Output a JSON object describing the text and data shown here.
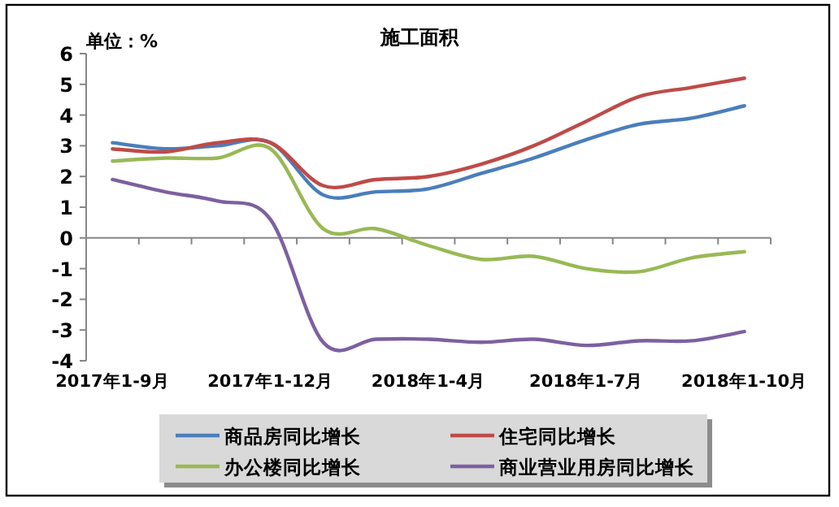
{
  "chart_data": {
    "type": "line",
    "title": "施工面积",
    "annotations": [
      "单位：%"
    ],
    "categories": [
      "2017年1-9月",
      null,
      null,
      "2017年1-12月",
      null,
      null,
      "2018年1-4月",
      null,
      null,
      "2018年1-7月",
      null,
      null,
      "2018年1-10月"
    ],
    "series": [
      {
        "name": "商品房同比增长",
        "color": "#4a7ebb",
        "values": [
          3.1,
          2.9,
          3.0,
          3.1,
          1.4,
          1.5,
          1.6,
          2.1,
          2.6,
          3.2,
          3.7,
          3.9,
          4.3
        ]
      },
      {
        "name": "住宅同比增长",
        "color": "#be4b48",
        "values": [
          2.9,
          2.8,
          3.1,
          3.1,
          1.7,
          1.9,
          2.0,
          2.4,
          3.0,
          3.8,
          4.6,
          4.9,
          5.2
        ]
      },
      {
        "name": "办公楼同比增长",
        "color": "#98b954",
        "values": [
          2.5,
          2.6,
          2.6,
          2.9,
          0.3,
          0.3,
          -0.25,
          -0.7,
          -0.6,
          -1.0,
          -1.1,
          -0.65,
          -0.45
        ]
      },
      {
        "name": "商业营业用房同比增长",
        "color": "#7d60a0",
        "values": [
          1.9,
          1.5,
          1.2,
          0.6,
          -3.4,
          -3.3,
          -3.3,
          -3.4,
          -3.3,
          -3.5,
          -3.35,
          -3.35,
          -3.05
        ]
      }
    ],
    "ylim": [
      -4,
      6
    ],
    "yticks": [
      -4,
      -3,
      -2,
      -1,
      0,
      1,
      2,
      3,
      4,
      5,
      6
    ],
    "legend": "bottom",
    "marker": "none",
    "line_style": "solid"
  }
}
